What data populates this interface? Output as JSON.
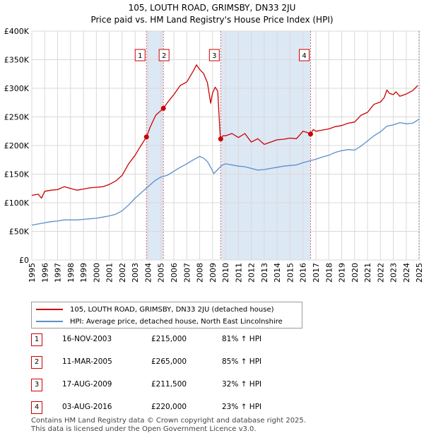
{
  "chart_title": "105, LOUTH ROAD, GRIMSBY, DN33 2JU",
  "chart_subtitle": "Price paid vs. HM Land Registry's House Price Index (HPI)",
  "colors": {
    "property": "#cc0000",
    "hpi": "#5b8fc7",
    "shade": "#dde8f5",
    "vline": "#e06060"
  },
  "chart_data": {
    "type": "line",
    "title": "105, LOUTH ROAD, GRIMSBY, DN33 2JU",
    "subtitle": "Price paid vs. HM Land Registry's House Price Index (HPI)",
    "xlim": [
      1995,
      2025.1
    ],
    "ylim": [
      0,
      400000
    ],
    "y_ticks": [
      0,
      50000,
      100000,
      150000,
      200000,
      250000,
      300000,
      350000,
      400000
    ],
    "y_tick_labels": [
      "£0",
      "£50K",
      "£100K",
      "£150K",
      "£200K",
      "£250K",
      "£300K",
      "£350K",
      "£400K"
    ],
    "x_ticks": [
      1995,
      1996,
      1997,
      1998,
      1999,
      2000,
      2001,
      2002,
      2003,
      2004,
      2005,
      2006,
      2007,
      2008,
      2009,
      2010,
      2011,
      2012,
      2013,
      2014,
      2015,
      2016,
      2017,
      2018,
      2019,
      2020,
      2021,
      2022,
      2023,
      2024,
      2025
    ],
    "grid": true,
    "series": [
      {
        "name": "105, LOUTH ROAD, GRIMSBY, DN33 2JU (detached house)",
        "x": [
          1995.0,
          1995.5,
          1995.75,
          1996.0,
          1996.5,
          1997.0,
          1997.5,
          1998.0,
          1998.5,
          1999.0,
          1999.5,
          2000.0,
          2000.5,
          2001.0,
          2001.5,
          2002.0,
          2002.5,
          2003.0,
          2003.4,
          2003.88,
          2004.2,
          2004.6,
          2005.19,
          2005.5,
          2006.0,
          2006.5,
          2007.0,
          2007.5,
          2007.75,
          2008.0,
          2008.3,
          2008.6,
          2008.85,
          2009.0,
          2009.2,
          2009.4,
          2009.6,
          2009.63,
          2009.8,
          2010.0,
          2010.5,
          2011.0,
          2011.5,
          2012.0,
          2012.5,
          2013.0,
          2013.5,
          2014.0,
          2014.5,
          2015.0,
          2015.5,
          2016.0,
          2016.3,
          2016.59,
          2016.8,
          2017.0,
          2017.5,
          2018.0,
          2018.5,
          2019.0,
          2019.5,
          2020.0,
          2020.5,
          2021.0,
          2021.5,
          2022.0,
          2022.3,
          2022.5,
          2022.7,
          2023.0,
          2023.2,
          2023.5,
          2024.0,
          2024.5,
          2024.9
        ],
        "y": [
          113000,
          115000,
          108000,
          120000,
          122000,
          123000,
          128000,
          125000,
          122000,
          124000,
          126000,
          127000,
          128000,
          132000,
          138000,
          148000,
          168000,
          183000,
          198000,
          215000,
          234000,
          253000,
          265000,
          275000,
          289000,
          305000,
          311000,
          330000,
          341000,
          333000,
          326000,
          310000,
          274000,
          292000,
          302000,
          295000,
          213000,
          211500,
          217000,
          217000,
          221000,
          214000,
          221000,
          206000,
          212000,
          202000,
          206000,
          210000,
          211000,
          213000,
          212000,
          225000,
          223000,
          220000,
          228000,
          225000,
          227000,
          229000,
          233000,
          235000,
          239000,
          241000,
          253000,
          258000,
          272000,
          276000,
          284000,
          297000,
          291000,
          289000,
          294000,
          286000,
          290000,
          296000,
          305000
        ]
      },
      {
        "name": "HPI: Average price, detached house, North East Lincolnshire",
        "x": [
          1995.0,
          1995.5,
          1996.0,
          1996.5,
          1997.0,
          1997.5,
          1998.0,
          1998.5,
          1999.0,
          1999.5,
          2000.0,
          2000.5,
          2001.0,
          2001.5,
          2002.0,
          2002.5,
          2003.0,
          2003.5,
          2004.0,
          2004.5,
          2005.0,
          2005.5,
          2006.0,
          2006.5,
          2007.0,
          2007.5,
          2008.0,
          2008.3,
          2008.6,
          2008.9,
          2009.1,
          2009.4,
          2009.7,
          2010.0,
          2010.5,
          2011.0,
          2011.5,
          2012.0,
          2012.5,
          2013.0,
          2013.5,
          2014.0,
          2014.5,
          2015.0,
          2015.5,
          2016.0,
          2016.5,
          2017.0,
          2017.5,
          2018.0,
          2018.5,
          2019.0,
          2019.5,
          2020.0,
          2020.5,
          2021.0,
          2021.5,
          2022.0,
          2022.5,
          2023.0,
          2023.5,
          2024.0,
          2024.5,
          2025.0
        ],
        "y": [
          61000,
          63000,
          65000,
          67000,
          68000,
          70000,
          70000,
          70000,
          71000,
          72000,
          73000,
          75000,
          77000,
          80000,
          86000,
          96000,
          108000,
          118000,
          128000,
          138000,
          145000,
          148000,
          155000,
          162000,
          168000,
          175000,
          181000,
          178000,
          172000,
          160000,
          151000,
          158000,
          165000,
          168000,
          166000,
          164000,
          163000,
          160000,
          157000,
          158000,
          160000,
          162000,
          164000,
          165000,
          166000,
          170000,
          173000,
          176000,
          180000,
          183000,
          188000,
          191000,
          193000,
          192000,
          199000,
          208000,
          217000,
          224000,
          234000,
          236000,
          240000,
          238000,
          239000,
          246000
        ]
      }
    ],
    "sale_markers": [
      {
        "label": "1",
        "x": 2003.88,
        "y": 215000,
        "date": "16-NOV-2003",
        "price": "£215,000",
        "hpi": "81% ↑ HPI"
      },
      {
        "label": "2",
        "x": 2005.19,
        "y": 265000,
        "date": "11-MAR-2005",
        "price": "£265,000",
        "hpi": "85% ↑ HPI"
      },
      {
        "label": "3",
        "x": 2009.63,
        "y": 211500,
        "date": "17-AUG-2009",
        "price": "£211,500",
        "hpi": "32% ↑ HPI"
      },
      {
        "label": "4",
        "x": 2016.59,
        "y": 220000,
        "date": "03-AUG-2016",
        "price": "£220,000",
        "hpi": "23% ↑ HPI"
      }
    ],
    "shaded_ranges": [
      [
        2003.88,
        2005.19
      ],
      [
        2009.63,
        2016.59
      ]
    ]
  },
  "legend": {
    "property_label": "105, LOUTH ROAD, GRIMSBY, DN33 2JU (detached house)",
    "hpi_label": "HPI: Average price, detached house, North East Lincolnshire"
  },
  "sales": [
    {
      "num": "1",
      "date": "16-NOV-2003",
      "price": "£215,000",
      "hpi": "81% ↑ HPI"
    },
    {
      "num": "2",
      "date": "11-MAR-2005",
      "price": "£265,000",
      "hpi": "85% ↑ HPI"
    },
    {
      "num": "3",
      "date": "17-AUG-2009",
      "price": "£211,500",
      "hpi": "32% ↑ HPI"
    },
    {
      "num": "4",
      "date": "03-AUG-2016",
      "price": "£220,000",
      "hpi": "23% ↑ HPI"
    }
  ],
  "footer": {
    "line1": "Contains HM Land Registry data © Crown copyright and database right 2025.",
    "line2": "This data is licensed under the Open Government Licence v3.0."
  }
}
